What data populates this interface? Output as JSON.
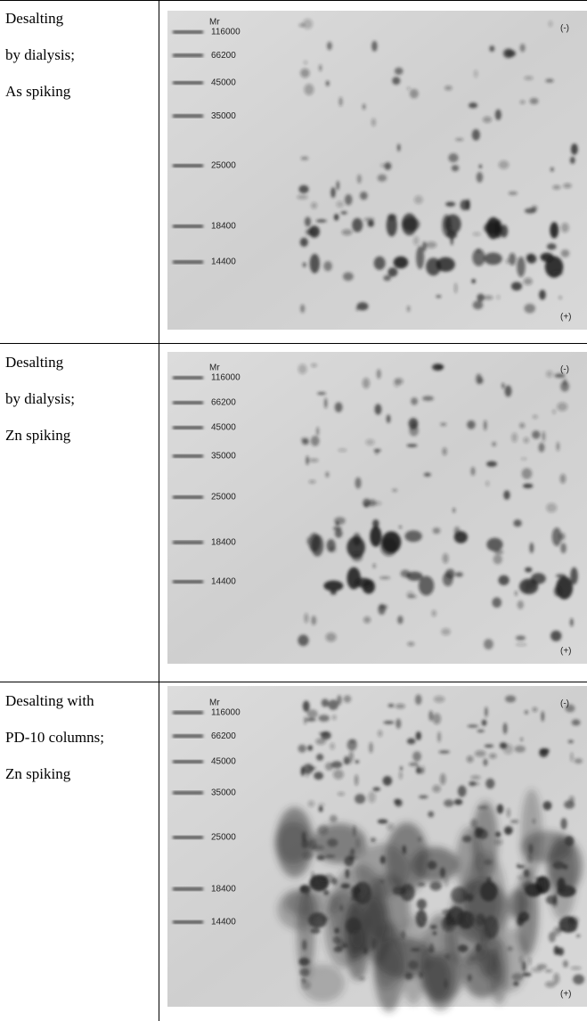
{
  "rows": [
    {
      "label_lines": [
        "Desalting",
        "by dialysis;",
        "As spiking"
      ],
      "gel": {
        "mr": "Mr",
        "markers": [
          "116000",
          "66200",
          "45000",
          "35000",
          "25000",
          "18400",
          "14400"
        ],
        "minus": "(-)",
        "plus": "(+)"
      }
    },
    {
      "label_lines": [
        "Desalting",
        "by dialysis;",
        "Zn spiking"
      ],
      "gel": {
        "mr": "Mr",
        "markers": [
          "116000",
          "66200",
          "45000",
          "35000",
          "25000",
          "18400",
          "14400"
        ],
        "minus": "(-)",
        "plus": "(+)"
      }
    },
    {
      "label_lines": [
        "Desalting with",
        "PD-10 columns;",
        "Zn spiking"
      ],
      "gel": {
        "mr": "Mr",
        "markers": [
          "116000",
          "66200",
          "45000",
          "35000",
          "25000",
          "18400",
          "14400"
        ],
        "minus": "(-)",
        "plus": "(+)"
      }
    }
  ]
}
